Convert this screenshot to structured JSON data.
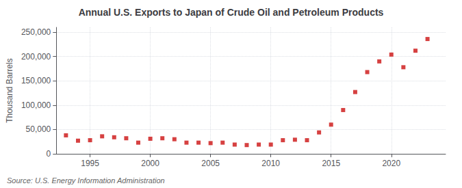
{
  "chart_data": {
    "type": "scatter",
    "title": "Annual U.S. Exports to Japan of Crude Oil and Petroleum Products",
    "ylabel": "Thousand Barrels",
    "source": "Source: U.S. Energy Information Administration",
    "x": [
      1993,
      1994,
      1995,
      1996,
      1997,
      1998,
      1999,
      2000,
      2001,
      2002,
      2003,
      2004,
      2005,
      2006,
      2007,
      2008,
      2009,
      2010,
      2011,
      2012,
      2013,
      2014,
      2015,
      2016,
      2017,
      2018,
      2019,
      2020,
      2021,
      2022,
      2023
    ],
    "values": [
      38000,
      27000,
      28000,
      36000,
      34000,
      32000,
      23000,
      31000,
      32000,
      30000,
      23000,
      23000,
      22000,
      23000,
      19000,
      18000,
      19000,
      19000,
      28000,
      29000,
      28000,
      44000,
      60000,
      90000,
      127000,
      168000,
      190000,
      204000,
      178000,
      212000,
      236000
    ],
    "color": "#cc1111",
    "marker": "square",
    "xlim": [
      1992.2,
      2024.5
    ],
    "xticks": [
      1995,
      2000,
      2005,
      2010,
      2015,
      2020
    ],
    "ylim": [
      0,
      260000
    ],
    "yticks": [
      0,
      {
        "value": 50000,
        "label": "50,000"
      },
      {
        "value": 100000,
        "label": "100,000"
      },
      {
        "value": 150000,
        "label": "150,000"
      },
      {
        "value": 200000,
        "label": "200,000"
      },
      {
        "value": 250000,
        "label": "250,000"
      }
    ],
    "grid": true
  }
}
